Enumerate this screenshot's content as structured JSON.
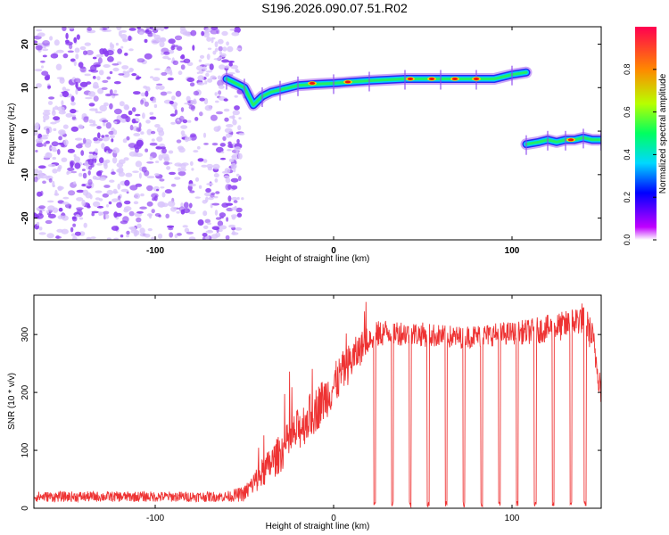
{
  "title": "S196.2026.090.07.51.R02",
  "colors": {
    "background": "#ffffff",
    "axis": "#000000",
    "snr_line": "#ee3333",
    "noise": "#8a3cf0",
    "noise_light": "#d9c6fb"
  },
  "chart_data": [
    {
      "type": "heatmap",
      "name": "spectrogram",
      "title": "S196.2026.090.07.51.R02",
      "xlabel": "Height of straight line (km)",
      "ylabel": "Frequency (Hz)",
      "xlim": [
        -168,
        150
      ],
      "ylim": [
        -25,
        24
      ],
      "x_ticks": [
        -100,
        0,
        100
      ],
      "x_tick_labels": [
        "-100",
        "0",
        "100"
      ],
      "y_ticks": [
        20,
        10,
        0,
        -10,
        -20
      ],
      "y_tick_labels": [
        "20",
        "10",
        "0",
        "-10",
        "-20"
      ],
      "colorbar": {
        "label": "Normalized spectral amplitude",
        "range": [
          0,
          1
        ],
        "ticks": [
          0.0,
          0.2,
          0.4,
          0.6,
          0.8
        ],
        "tick_labels": [
          "0.0",
          "0.2",
          "0.4",
          "0.6",
          "0.8"
        ]
      },
      "noise_region_x": [
        -168,
        -55
      ],
      "track_1": {
        "x": [
          -60,
          -55,
          -50,
          -45,
          -40,
          -35,
          -30,
          -25,
          -20,
          -10,
          0,
          10,
          20,
          30,
          40,
          50,
          60,
          70,
          80,
          90,
          100,
          108
        ],
        "freq": [
          12,
          11,
          10,
          6,
          8,
          9,
          9.5,
          10,
          10.5,
          10.8,
          11,
          11.3,
          11.6,
          11.8,
          12,
          12,
          12,
          12,
          12,
          12,
          13,
          13.5
        ]
      },
      "track_2": {
        "x": [
          108,
          115,
          120,
          125,
          130,
          135,
          140,
          145,
          150
        ],
        "freq": [
          -3,
          -2.5,
          -2,
          -2.5,
          -2,
          -2,
          -1.5,
          -2,
          -2
        ]
      },
      "peak_points": [
        {
          "x": -12,
          "freq": 11
        },
        {
          "x": 8,
          "freq": 11.3
        },
        {
          "x": 43,
          "freq": 12
        },
        {
          "x": 55,
          "freq": 12
        },
        {
          "x": 68,
          "freq": 12
        },
        {
          "x": 80,
          "freq": 12
        },
        {
          "x": 133,
          "freq": -2
        }
      ]
    },
    {
      "type": "line",
      "name": "snr",
      "xlabel": "Height of straight line (km)",
      "ylabel": "SNR (10 * v/v)",
      "xlim": [
        -168,
        150
      ],
      "ylim": [
        0,
        368
      ],
      "x_ticks": [
        -100,
        0,
        100
      ],
      "x_tick_labels": [
        "-100",
        "0",
        "100"
      ],
      "y_ticks": [
        0,
        100,
        200,
        300
      ],
      "y_tick_labels": [
        "0",
        "100",
        "200",
        "300"
      ],
      "series": [
        {
          "name": "SNR",
          "profile": {
            "x": [
              -168,
              -60,
              -50,
              -40,
              -30,
              -20,
              -10,
              0,
              5,
              10,
              20,
              30,
              50,
              70,
              90,
              110,
              130,
              140,
              145,
              150
            ],
            "y": [
              20,
              20,
              25,
              60,
              95,
              135,
              170,
              210,
              235,
              255,
              295,
              305,
              300,
              295,
              300,
              305,
              315,
              330,
              295,
              205
            ]
          },
          "spread": {
            "x": [
              -168,
              -60,
              -50,
              -40,
              -30,
              -20,
              -10,
              0,
              10,
              20,
              60,
              100,
              140,
              150
            ],
            "y": [
              9,
              9,
              14,
              26,
              34,
              38,
              40,
              38,
              34,
              24,
              20,
              20,
              28,
              30
            ]
          },
          "dropouts_x": [
            23,
            33,
            43,
            53,
            63,
            73,
            83,
            93,
            103,
            113,
            123,
            133,
            141
          ]
        }
      ]
    }
  ]
}
